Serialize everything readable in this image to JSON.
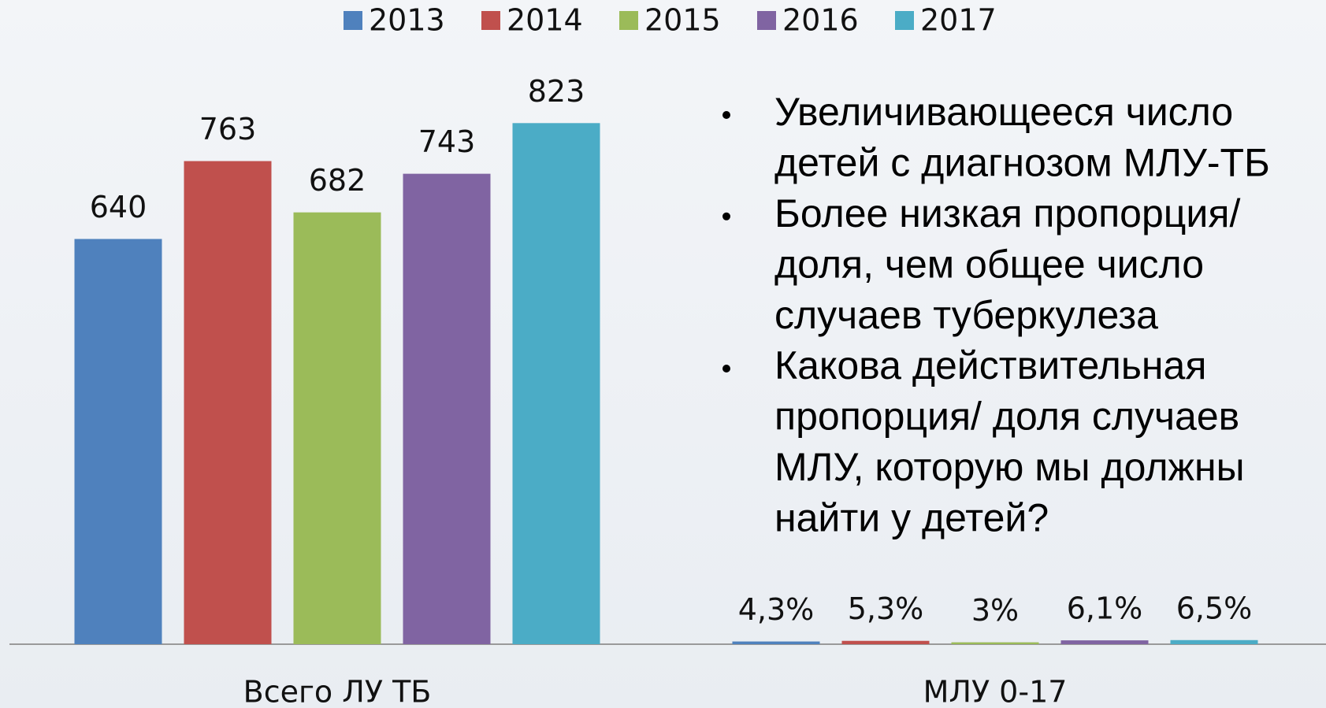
{
  "chart_data": {
    "type": "bar",
    "categories": [
      "Всего ЛУ ТБ",
      "МЛУ 0-17"
    ],
    "series": [
      {
        "name": "2013",
        "color": "#4f81bd",
        "values": [
          640,
          4.3
        ],
        "value_labels": [
          "640",
          "4,3%"
        ]
      },
      {
        "name": "2014",
        "color": "#c0504d",
        "values": [
          763,
          5.3
        ],
        "value_labels": [
          "763",
          "5,3%"
        ]
      },
      {
        "name": "2015",
        "color": "#9bbb59",
        "values": [
          682,
          3
        ],
        "value_labels": [
          "682",
          "3%"
        ]
      },
      {
        "name": "2016",
        "color": "#8064a2",
        "values": [
          743,
          6.1
        ],
        "value_labels": [
          "743",
          "6,1%"
        ]
      },
      {
        "name": "2017",
        "color": "#4bacc6",
        "values": [
          823,
          6.5
        ],
        "value_labels": [
          "823",
          "6,5%"
        ]
      }
    ],
    "ylim": [
      0,
      1000
    ],
    "legend": "top",
    "annotations": [
      [
        "Увеличивающееся число",
        "детей с диагнозом МЛУ-ТБ"
      ],
      [
        "Более низкая пропорция/",
        "доля, чем общее число",
        "случаев туберкулеза"
      ],
      [
        "Какова действительная",
        "пропорция/ доля случаев",
        "МЛУ, которую мы должны",
        "найти у детей?"
      ]
    ]
  }
}
